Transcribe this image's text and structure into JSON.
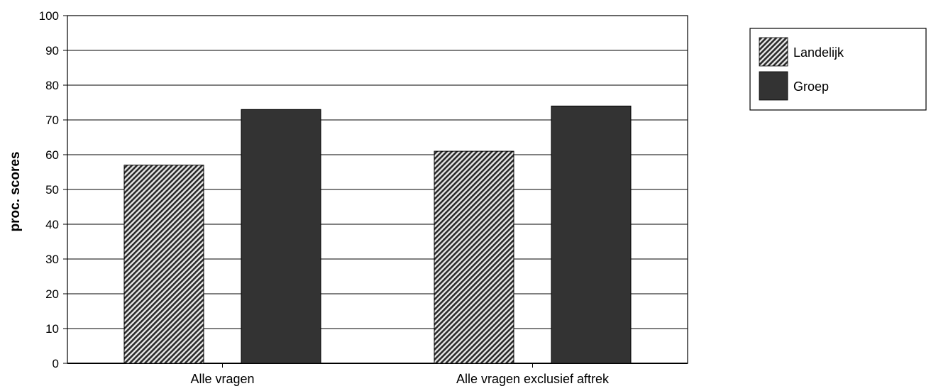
{
  "chart_data": {
    "type": "bar",
    "title": "",
    "xlabel": "",
    "ylabel": "proc. scores",
    "ylim": [
      0,
      100
    ],
    "yticks": [
      0,
      10,
      20,
      30,
      40,
      50,
      60,
      70,
      80,
      90,
      100
    ],
    "grid": true,
    "legend_position": "top-right",
    "categories": [
      "Alle vragen",
      "Alle vragen exclusief aftrek"
    ],
    "series": [
      {
        "name": "Landelijk",
        "values": [
          57,
          61
        ],
        "pattern": "diagonal-hatch",
        "color": "#777777"
      },
      {
        "name": "Groep",
        "values": [
          73,
          74
        ],
        "pattern": "solid",
        "color": "#333333"
      }
    ]
  }
}
